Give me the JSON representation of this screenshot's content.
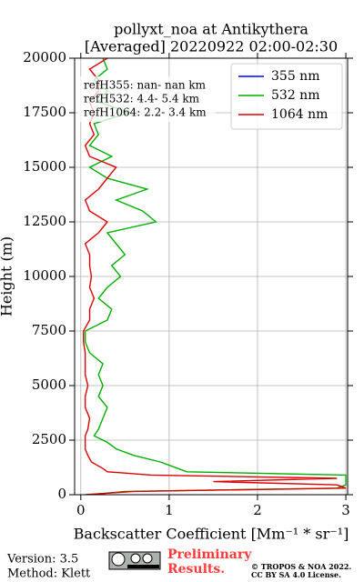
{
  "chart_data": {
    "type": "profile",
    "title": [
      "pollyxt_noa at Antikythera",
      "[Averaged] 20220922 02:00-02:30"
    ],
    "x_label": "Backscatter Coefficient [Mm⁻¹ * sr⁻¹]",
    "y_label": "Height (m)",
    "xlim": [
      -0.07,
      3.02
    ],
    "xticks": [
      0,
      1,
      2,
      3
    ],
    "ylim": [
      0,
      20000
    ],
    "yticks": [
      0,
      2500,
      5000,
      7500,
      10000,
      12500,
      15000,
      17500,
      20000
    ],
    "grid": true,
    "legend": "upper right",
    "heights": [
      0,
      150,
      300,
      450,
      600,
      750,
      900,
      1050,
      1200,
      1500,
      1800,
      2100,
      2400,
      2700,
      3000,
      3500,
      4000,
      4500,
      5000,
      5500,
      6000,
      6500,
      7000,
      7500,
      8000,
      8500,
      9000,
      9500,
      10000,
      10500,
      11000,
      11500,
      12000,
      12500,
      13000,
      13500,
      14000,
      14500,
      15000,
      15500,
      16000,
      16500,
      17000,
      17500,
      18000,
      18500,
      19000,
      19500,
      20000
    ],
    "series": [
      {
        "name": "355 nm",
        "color": "#0000ff",
        "values": [
          null,
          null,
          null,
          null,
          null,
          null,
          null,
          null,
          null,
          null,
          null,
          null,
          null,
          null,
          null,
          null,
          null,
          null,
          null,
          null,
          null,
          null,
          null,
          null,
          null,
          null,
          null,
          null,
          null,
          null,
          null,
          null,
          null,
          null,
          null,
          null,
          null,
          null,
          null,
          null,
          null,
          null,
          null,
          null,
          null,
          null,
          null,
          null,
          null
        ]
      },
      {
        "name": "532 nm",
        "color": "#00b000",
        "values": [
          0.1,
          0.5,
          2.9,
          3.0,
          3.0,
          3.0,
          3.0,
          1.2,
          1.1,
          0.9,
          0.6,
          0.4,
          0.3,
          0.15,
          0.2,
          0.25,
          0.3,
          0.2,
          0.25,
          0.2,
          0.25,
          0.1,
          0.05,
          0.05,
          0.3,
          0.35,
          0.2,
          0.3,
          0.45,
          0.35,
          0.5,
          0.4,
          0.3,
          0.85,
          0.7,
          0.4,
          0.75,
          0.3,
          0.1,
          0.35,
          0.1,
          0.2,
          0.15,
          0.55,
          0.2,
          0.3,
          0.15,
          0.3,
          0.25
        ]
      },
      {
        "name": "1064 nm",
        "color": "#e00000",
        "values": [
          0.05,
          0.6,
          3.0,
          2.9,
          1.5,
          2.9,
          0.8,
          0.3,
          0.25,
          0.12,
          0.08,
          0.05,
          0.05,
          0.05,
          0.08,
          0.1,
          0.05,
          0.05,
          0.08,
          0.05,
          0.05,
          0.05,
          0.03,
          0.03,
          0.1,
          0.1,
          0.15,
          0.1,
          0.12,
          0.1,
          0.1,
          0.05,
          0.2,
          0.3,
          0.1,
          0.05,
          0.2,
          0.3,
          0.4,
          0.1,
          0.05,
          0.15,
          0.1,
          0.15,
          0.1,
          0.2,
          0.2,
          0.1,
          0.3
        ]
      }
    ],
    "annotations": [
      "refH355:  nan- nan km",
      "refH532:  4.4- 5.4 km",
      "refH1064:  2.2- 3.4 km"
    ],
    "footer": {
      "version": "Version: 3.5",
      "method": "Method: Klett",
      "status": "Preliminary Results.",
      "copyright": "© TROPOS & NOA 2022.",
      "license": "CC BY SA 4.0 License."
    }
  }
}
